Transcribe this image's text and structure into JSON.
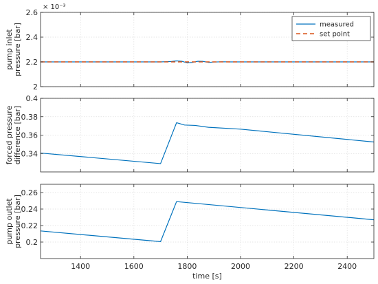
{
  "chart_data": [
    {
      "type": "line",
      "ylabel_lines": [
        "pump inlet",
        "pressure [bar]"
      ],
      "y_exponent": "× 10⁻³",
      "xlim": [
        1250,
        2500
      ],
      "ylim": [
        2.0,
        2.6
      ],
      "yticks": [
        2,
        2.2,
        2.4,
        2.6
      ],
      "ytick_labels": [
        "2",
        "2.2",
        "2.4",
        "2.6"
      ],
      "grid": true,
      "legend_position": "top-right",
      "series": [
        {
          "name": "measured",
          "color": "#0072BD",
          "style": "solid",
          "x": [
            1250,
            1700,
            1740,
            1760,
            1780,
            1800,
            1820,
            1840,
            1860,
            1880,
            1900,
            1930,
            1960,
            2000,
            2500
          ],
          "y": [
            2.2,
            2.2,
            2.203,
            2.208,
            2.205,
            2.192,
            2.196,
            2.205,
            2.204,
            2.196,
            2.199,
            2.201,
            2.2,
            2.2,
            2.2
          ]
        },
        {
          "name": "set point",
          "color": "#D95319",
          "style": "dashed",
          "x": [
            1250,
            2500
          ],
          "y": [
            2.2,
            2.2
          ]
        }
      ]
    },
    {
      "type": "line",
      "ylabel_lines": [
        "forced pressure",
        "difference [bar]"
      ],
      "xlim": [
        1250,
        2500
      ],
      "ylim": [
        0.32,
        0.4
      ],
      "yticks": [
        0.34,
        0.36,
        0.38,
        0.4
      ],
      "ytick_labels": [
        "0.34",
        "0.36",
        "0.38",
        "0.4"
      ],
      "grid": true,
      "series": [
        {
          "color": "#0072BD",
          "style": "solid",
          "x": [
            1250,
            1700,
            1760,
            1790,
            1830,
            1880,
            2000,
            2500
          ],
          "y": [
            0.3405,
            0.329,
            0.3735,
            0.371,
            0.3705,
            0.3685,
            0.3665,
            0.3525
          ]
        }
      ]
    },
    {
      "type": "line",
      "ylabel_lines": [
        "pump outlet",
        "pressure [bar]"
      ],
      "xlabel": "time [s]",
      "xlim": [
        1250,
        2500
      ],
      "ylim": [
        0.18,
        0.27
      ],
      "xticks": [
        1400,
        1600,
        1800,
        2000,
        2200,
        2400
      ],
      "xtick_labels": [
        "1400",
        "1600",
        "1800",
        "2000",
        "2200",
        "2400"
      ],
      "yticks": [
        0.2,
        0.22,
        0.24,
        0.26
      ],
      "ytick_labels": [
        "0.2",
        "0.22",
        "0.24",
        "0.26"
      ],
      "grid": true,
      "series": [
        {
          "color": "#0072BD",
          "style": "solid",
          "x": [
            1250,
            1700,
            1760,
            2500
          ],
          "y": [
            0.2135,
            0.2005,
            0.249,
            0.227
          ]
        }
      ]
    }
  ]
}
